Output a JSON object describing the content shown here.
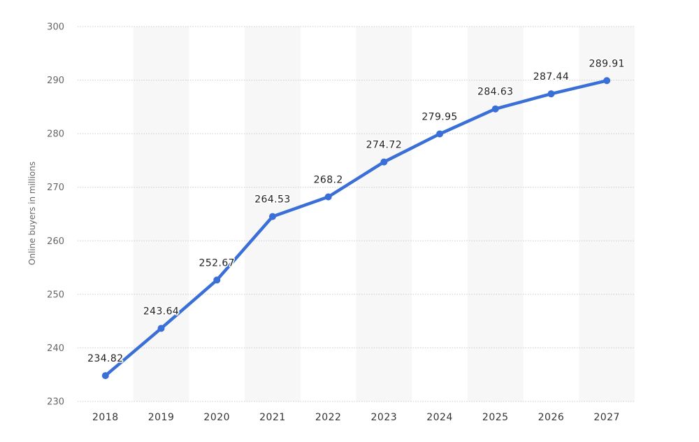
{
  "chart_data": {
    "type": "line",
    "categories": [
      "2018",
      "2019",
      "2020",
      "2021",
      "2022",
      "2023",
      "2024",
      "2025",
      "2026",
      "2027"
    ],
    "series": [
      {
        "values": [
          234.82,
          243.64,
          252.67,
          264.53,
          268.2,
          274.72,
          279.95,
          284.63,
          287.44,
          289.91
        ]
      }
    ],
    "data_labels": [
      "234.82",
      "243.64",
      "252.67",
      "264.53",
      "268.2",
      "274.72",
      "279.95",
      "284.63",
      "287.44",
      "289.91"
    ],
    "ylabel": "Online buyers in millions",
    "ylim": [
      230,
      300
    ],
    "yticks": [
      230,
      240,
      250,
      260,
      270,
      280,
      290,
      300
    ],
    "grid": true,
    "legend": "none",
    "colors": {
      "line": "#3a6fd8",
      "grid": "#cccccc",
      "band": "#f7f7f7"
    }
  }
}
